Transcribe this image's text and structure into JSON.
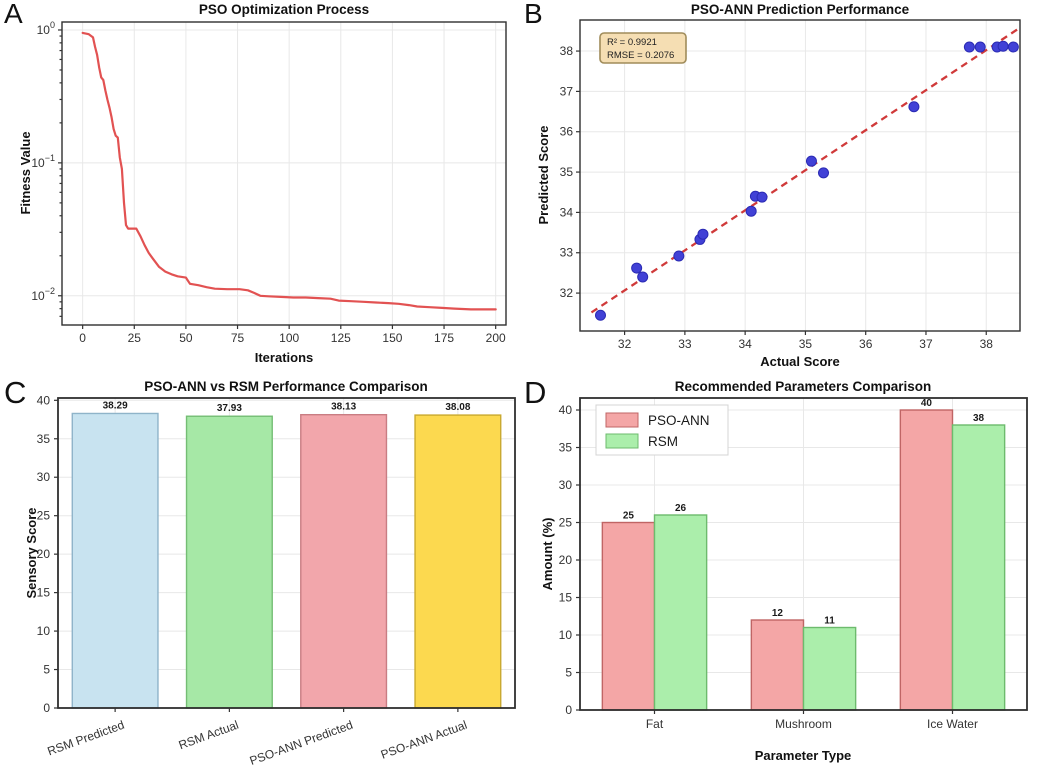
{
  "chart_data": [
    {
      "panel": "A",
      "type": "line",
      "title": "PSO Optimization Process",
      "xlabel": "Iterations",
      "ylabel": "Fitness Value",
      "yscale": "log",
      "xlim": [
        -10,
        205
      ],
      "ylim_exponents": [
        -2.22,
        0.06
      ],
      "xticks": [
        0,
        25,
        50,
        75,
        100,
        125,
        150,
        175,
        200
      ],
      "ytick_exponents": [
        0,
        -1,
        -2
      ],
      "ytick_labels": [
        "10⁰",
        "10⁻¹",
        "10⁻²"
      ],
      "grid": true,
      "line_color": "#e25252",
      "points": [
        [
          0,
          0.95
        ],
        [
          3,
          0.93
        ],
        [
          5,
          0.88
        ],
        [
          6,
          0.75
        ],
        [
          7,
          0.65
        ],
        [
          8,
          0.52
        ],
        [
          9,
          0.44
        ],
        [
          10,
          0.42
        ],
        [
          11,
          0.35
        ],
        [
          12,
          0.3
        ],
        [
          13,
          0.26
        ],
        [
          14,
          0.22
        ],
        [
          15,
          0.18
        ],
        [
          16,
          0.16
        ],
        [
          17,
          0.155
        ],
        [
          18,
          0.11
        ],
        [
          19,
          0.09
        ],
        [
          20,
          0.05
        ],
        [
          21,
          0.034
        ],
        [
          22,
          0.032
        ],
        [
          26,
          0.032
        ],
        [
          28,
          0.028
        ],
        [
          30,
          0.024
        ],
        [
          32,
          0.021
        ],
        [
          34,
          0.019
        ],
        [
          37,
          0.0165
        ],
        [
          40,
          0.0152
        ],
        [
          43,
          0.0145
        ],
        [
          46,
          0.014
        ],
        [
          50,
          0.0137
        ],
        [
          52,
          0.0123
        ],
        [
          56,
          0.012
        ],
        [
          60,
          0.0116
        ],
        [
          64,
          0.0113
        ],
        [
          70,
          0.0112
        ],
        [
          76,
          0.0112
        ],
        [
          80,
          0.011
        ],
        [
          83,
          0.0105
        ],
        [
          86,
          0.01
        ],
        [
          90,
          0.0099
        ],
        [
          96,
          0.0098
        ],
        [
          102,
          0.0097
        ],
        [
          108,
          0.0097
        ],
        [
          114,
          0.0096
        ],
        [
          120,
          0.0095
        ],
        [
          124,
          0.0092
        ],
        [
          130,
          0.0091
        ],
        [
          136,
          0.009
        ],
        [
          142,
          0.0089
        ],
        [
          148,
          0.0088
        ],
        [
          153,
          0.0087
        ],
        [
          158,
          0.0085
        ],
        [
          162,
          0.0083
        ],
        [
          168,
          0.0082
        ],
        [
          174,
          0.0081
        ],
        [
          180,
          0.008
        ],
        [
          188,
          0.0079
        ],
        [
          200,
          0.0079
        ]
      ]
    },
    {
      "panel": "B",
      "type": "scatter",
      "title": "PSO-ANN Prediction Performance",
      "xlabel": "Actual Score",
      "ylabel": "Predicted Score",
      "xlim": [
        31.26,
        38.56
      ],
      "ylim": [
        31.06,
        38.77
      ],
      "xticks": [
        32,
        33,
        34,
        35,
        36,
        37,
        38
      ],
      "yticks": [
        32,
        33,
        34,
        35,
        36,
        37,
        38
      ],
      "grid": true,
      "dot_color": "#4141d6",
      "dot_edge": "#2b2bb4",
      "annotation_lines": [
        "R² = 0.9921",
        "RMSE = 0.2076"
      ],
      "annotation_box_color": "#f5deb3",
      "trend": {
        "x1": 31.45,
        "y1": 31.52,
        "x2": 38.56,
        "y2": 38.58,
        "color": "#d03a3a",
        "style": "dashed"
      },
      "points": [
        [
          31.6,
          31.45
        ],
        [
          32.2,
          32.62
        ],
        [
          32.3,
          32.4
        ],
        [
          32.9,
          32.92
        ],
        [
          33.25,
          33.33
        ],
        [
          33.3,
          33.46
        ],
        [
          34.1,
          34.03
        ],
        [
          34.17,
          34.4
        ],
        [
          34.28,
          34.38
        ],
        [
          35.1,
          35.27
        ],
        [
          35.3,
          34.98
        ],
        [
          36.8,
          36.62
        ],
        [
          37.72,
          38.1
        ],
        [
          37.9,
          38.1
        ],
        [
          38.18,
          38.1
        ],
        [
          38.28,
          38.12
        ],
        [
          38.45,
          38.1
        ]
      ]
    },
    {
      "panel": "C",
      "type": "bar",
      "title": "PSO-ANN vs RSM Performance Comparison",
      "xlabel": "",
      "ylabel": "Sensory Score",
      "categories": [
        "RSM Predicted",
        "RSM Actual",
        "PSO-ANN Predicted",
        "PSO-ANN Actual"
      ],
      "values": [
        38.29,
        37.93,
        38.13,
        38.08
      ],
      "value_labels": [
        "38.29",
        "37.93",
        "38.13",
        "38.08"
      ],
      "bar_colors": [
        "#c8e3f0",
        "#a6e8a6",
        "#f2a6ab",
        "#fcd94f"
      ],
      "bar_edges": [
        "#8fb4c9",
        "#74bd74",
        "#c97d83",
        "#c9a92f"
      ],
      "ylim": [
        0,
        40.3
      ],
      "yticks": [
        0,
        5,
        10,
        15,
        20,
        25,
        30,
        35,
        40
      ],
      "grid": true,
      "xtick_rotation": -20
    },
    {
      "panel": "D",
      "type": "grouped_bar",
      "title": "Recommended Parameters Comparison",
      "xlabel": "Parameter Type",
      "ylabel": "Amount (%)",
      "categories": [
        "Fat",
        "Mushroom",
        "Ice Water"
      ],
      "series": [
        {
          "name": "PSO-ANN",
          "color": "#f4a6a6",
          "edge": "#c06565",
          "values": [
            25,
            12,
            40
          ],
          "value_labels": [
            "25",
            "12",
            "40"
          ]
        },
        {
          "name": "RSM",
          "color": "#abeeab",
          "edge": "#6dbb6d",
          "values": [
            26,
            11,
            38
          ],
          "value_labels": [
            "26",
            "11",
            "38"
          ]
        }
      ],
      "ylim": [
        0,
        41.6
      ],
      "yticks": [
        0,
        5,
        10,
        15,
        20,
        25,
        30,
        35,
        40
      ],
      "grid": true,
      "legend_position": "upper-left"
    }
  ]
}
